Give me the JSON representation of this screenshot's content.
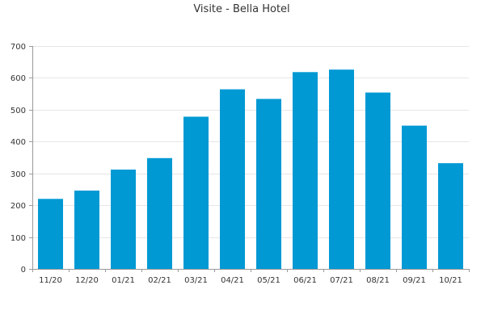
{
  "chart_data": {
    "type": "bar",
    "title": "Visite - Bella Hotel",
    "xlabel": "",
    "ylabel": "",
    "categories": [
      "11/20",
      "12/20",
      "01/21",
      "02/21",
      "03/21",
      "04/21",
      "05/21",
      "06/21",
      "07/21",
      "08/21",
      "09/21",
      "10/21"
    ],
    "values": [
      220,
      246,
      312,
      348,
      478,
      564,
      534,
      618,
      626,
      554,
      450,
      332
    ],
    "ylim": [
      0,
      700
    ],
    "yticks": [
      0,
      100,
      200,
      300,
      400,
      500,
      600,
      700
    ],
    "grid": true,
    "legend": "none",
    "bar_color": "#0099d4"
  }
}
